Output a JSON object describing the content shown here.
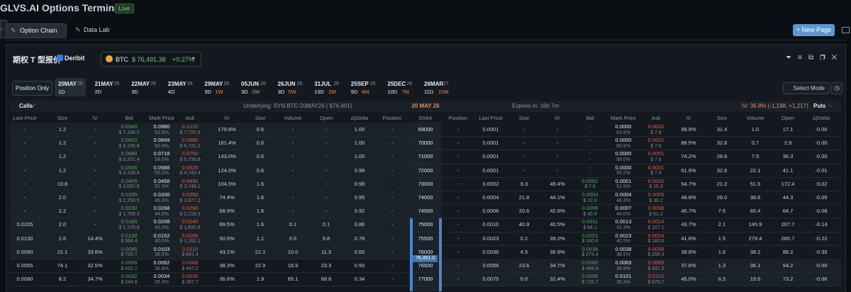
{
  "header": {
    "title": "GLVS.AI Options Terminal",
    "badge": "Live"
  },
  "tabs": [
    "Option Chain",
    "Data Lab"
  ],
  "new_page": "+ New Page",
  "toolbar": {
    "title": "期权 T 型报价",
    "exchange": "Deribit",
    "asset": "BTC",
    "price": "$ 76,491.38",
    "change": "+0.27%"
  },
  "position_only": "Position Only",
  "expiries": [
    {
      "date": "20MAY",
      "year": "26",
      "days": "1D"
    },
    {
      "date": "21MAY",
      "year": "26",
      "days": "2D"
    },
    {
      "date": "22MAY",
      "year": "26",
      "days": "3D"
    },
    {
      "date": "23MAY",
      "year": "26",
      "days": "4D"
    },
    {
      "date": "29MAY",
      "year": "26",
      "days": "3D",
      "span": "1W"
    },
    {
      "date": "05JUN",
      "year": "26",
      "days": "3D",
      "span": "2W"
    },
    {
      "date": "26JUN",
      "year": "26",
      "days": "3D",
      "span": "5W"
    },
    {
      "date": "31JUL",
      "year": "26",
      "days": "13D",
      "span": "2M"
    },
    {
      "date": "25SEP",
      "year": "26",
      "days": "9D",
      "span": "4M"
    },
    {
      "date": "25DEC",
      "year": "26",
      "days": "10D",
      "span": "7M"
    },
    {
      "date": "26MAR",
      "year": "27",
      "days": "11D",
      "span": "10M"
    }
  ],
  "select_mode": "Select Mode",
  "info": {
    "calls": "Calls",
    "underlying": "Underlying: SYN.BTC-20MAY26 ( $76,491)",
    "expiry": "20 MAY 26",
    "expires_in": "Expires in: 16h 7m",
    "iv": "IV: 36.8% (-1,198, +1,217)",
    "puts": "Puts"
  },
  "columns": [
    "Last Price",
    "Size",
    "IV",
    "Bid",
    "Mark Price",
    "Ask",
    "IV",
    "Size",
    "Volume",
    "Open",
    "Δ|Delta",
    "Position",
    "Strike",
    "Position",
    "Last Price",
    "Size",
    "IV",
    "Bid",
    "Mark Price",
    "Ask",
    "IV",
    "Size",
    "Volume",
    "Open",
    "Δ|Delta"
  ],
  "underlying_marker": "76,491.0",
  "rows": [
    [
      "-",
      "1.2",
      "-",
      [
        "0.0940",
        "$ 7,190.2"
      ],
      [
        "0.0980",
        "63.8%"
      ],
      [
        "0.1010",
        "$ 7,725.6"
      ],
      "179.6%",
      "0.6",
      "-",
      "-",
      "1.00",
      "-",
      "69000",
      "-",
      "0.0001",
      "-",
      "-",
      [
        "-",
        "-"
      ],
      [
        "0.0000",
        "63.8%"
      ],
      [
        "0.0001",
        "$ 7.6"
      ],
      "98.9%",
      "31.4",
      "1.0",
      "17.1",
      "-0.00"
    ],
    [
      "-",
      "1.2",
      "-",
      [
        "0.0810",
        "$ 6,195.8"
      ],
      [
        "0.0849",
        "60.9%"
      ],
      [
        "0.0880",
        "$ 6,731.2"
      ],
      "161.4%",
      "0.6",
      "-",
      "-",
      "1.00",
      "-",
      "70000",
      "-",
      "0.0001",
      "-",
      "-",
      [
        "-",
        "-"
      ],
      [
        "0.0000",
        "60.9%"
      ],
      [
        "0.0001",
        "$ 7.6"
      ],
      "86.5%",
      "32.6",
      "0.7",
      "2.9",
      "-0.00"
    ],
    [
      "-",
      "1.2",
      "-",
      [
        "0.0680",
        "$ 5,201.4"
      ],
      [
        "0.0718",
        "58.0%"
      ],
      [
        "0.0750",
        "$ 5,736.8"
      ],
      "143.0%",
      "0.6",
      "-",
      "-",
      "1.00",
      "-",
      "71000",
      "-",
      "0.0001",
      "-",
      "-",
      [
        "-",
        "-"
      ],
      [
        "0.0000",
        "58.0%"
      ],
      [
        "0.0001",
        "$ 7.6"
      ],
      "74.2%",
      "28.8",
      "7.5",
      "36.3",
      "-0.00"
    ],
    [
      "-",
      "1.2",
      "-",
      [
        "0.0545",
        "$ 4,168.8"
      ],
      [
        "0.0588",
        "55.2%"
      ],
      [
        "0.0620",
        "$ 4,742.4"
      ],
      "124.0%",
      "0.6",
      "-",
      "-",
      "0.99",
      "-",
      "72000",
      "-",
      "0.0001",
      "-",
      "-",
      [
        "-",
        "-"
      ],
      [
        "0.0000",
        "55.2%"
      ],
      [
        "0.0001",
        "$ 7.6"
      ],
      "61.9%",
      "32.6",
      "22.1",
      "41.1",
      "-0.01"
    ],
    [
      "-",
      "10.8",
      "-",
      [
        "0.0405",
        "$ 3,097.9"
      ],
      [
        "0.0458",
        "51.5%"
      ],
      [
        "0.0490",
        "$ 3,748.1"
      ],
      "104.5%",
      "1.6",
      "-",
      "-",
      "0.98",
      "-",
      "73000",
      "-",
      "0.0002",
      "9.3",
      "49.4%",
      [
        "0.0001",
        "$ 7.6"
      ],
      [
        "0.0001",
        "51.5%"
      ],
      [
        "0.0002",
        "$ 15.3"
      ],
      "54.7%",
      "21.2",
      "51.5",
      "172.4",
      "-0.02"
    ],
    [
      "-",
      "2.0",
      "-",
      [
        "0.0295",
        "$ 2,256.5"
      ],
      [
        "0.0330",
        "46.3%"
      ],
      [
        "0.0350",
        "$ 2,677.2"
      ],
      "74.4%",
      "1.6",
      "-",
      "-",
      "0.95",
      "-",
      "74000",
      "-",
      "0.0004",
      "21.8",
      "44.1%",
      [
        "0.0003",
        "$ 22.9"
      ],
      [
        "0.0004",
        "46.3%"
      ],
      [
        "0.0005",
        "$ 38.2"
      ],
      "48.8%",
      "28.0",
      "38.6",
      "44.3",
      "-0.05"
    ],
    [
      "-",
      "2.2",
      "-",
      [
        "0.0230",
        "$ 1,759.3"
      ],
      [
        "0.0268",
        "44.0%"
      ],
      [
        "0.0290",
        "$ 2,218.3"
      ],
      "68.9%",
      "1.6",
      "-",
      "-",
      "0.92",
      "-",
      "74500",
      "-",
      "0.0006",
      "20.6",
      "42.6%",
      [
        "0.0006",
        "$ 45.9"
      ],
      [
        "0.0007",
        "44.0%"
      ],
      [
        "0.0008",
        "$ 61.2"
      ],
      "45.7%",
      "7.6",
      "65.4",
      "64.7",
      "-0.08"
    ],
    [
      "0.0205",
      "2.0",
      "-",
      [
        "0.0180",
        "$ 1,376.8"
      ],
      [
        "0.0208",
        "42.3%"
      ],
      [
        "0.0240",
        "$ 1,835.8"
      ],
      "69.5%",
      "1.6",
      "0.1",
      "0.1",
      "0.86",
      "-",
      "75000",
      "-",
      "0.0010",
      "40.9",
      "40.5%",
      [
        "0.0011",
        "$ 84.1"
      ],
      [
        "0.0013",
        "42.3%"
      ],
      [
        "0.0014",
        "$ 107.1"
      ],
      "43.7%",
      "2.1",
      "145.9",
      "207.7",
      "-0.14"
    ],
    [
      "0.0130",
      "2.6",
      "14.4%",
      [
        "0.0130",
        "$ 994.4"
      ],
      [
        "0.0152",
        "40.5%"
      ],
      [
        "0.0165",
        "$ 1,262.1"
      ],
      "50.0%",
      "1.1",
      "0.6",
      "9.8",
      "0.78",
      "-",
      "75500",
      "-",
      "0.0023",
      "0.2",
      "39.2%",
      [
        "0.0021",
        "$ 160.6"
      ],
      [
        "0.0023",
        "40.5%"
      ],
      [
        "0.0024",
        "$ 183.6"
      ],
      "41.6%",
      "1.5",
      "279.4",
      "285.7",
      "-0.22"
    ],
    [
      "0.0090",
      "21.1",
      "33.6%",
      [
        "0.0095",
        "$ 726.7"
      ],
      [
        "0.0103",
        "38.5%"
      ],
      [
        "0.0110",
        "$ 841.4"
      ],
      "43.1%",
      "21.1",
      "10.0",
      "11.3",
      "0.65",
      "-",
      "76000",
      "-",
      "0.0036",
      "4.5",
      "36.9%",
      [
        "0.0036",
        "$ 275.4"
      ],
      [
        "0.0038",
        "38.5%"
      ],
      [
        "0.0039",
        "$ 298.3"
      ],
      "38.8%",
      "1.6",
      "38.2",
      "88.2",
      "-0.35"
    ],
    [
      "0.0055",
      "74.1",
      "32.5%",
      [
        "0.0055",
        "$ 420.7"
      ],
      [
        "0.0062",
        "36.8%"
      ],
      [
        "0.0065",
        "$ 497.2"
      ],
      "38.3%",
      "22.9",
      "16.9",
      "23.3",
      "0.50",
      "-",
      "76500",
      "-",
      "0.0056",
      "23.6",
      "34.7%",
      [
        "0.0060",
        "$ 458.9"
      ],
      [
        "0.0063",
        "36.8%"
      ],
      [
        "0.0065",
        "$ 497.2"
      ],
      "37.6%",
      "1.3",
      "36.1",
      "54.2",
      "-0.50"
    ],
    [
      "0.0060",
      "8.2",
      "34.7%",
      [
        "0.0032",
        "$ 244.8"
      ],
      [
        "0.0034",
        "35.3%"
      ],
      [
        "0.0035",
        "$ 267.7"
      ],
      "36.6%",
      "1.9",
      "65.1",
      "68.6",
      "0.34",
      "-",
      "77000",
      "-",
      "0.0075",
      "5.0",
      "32.4%",
      [
        "0.0095",
        "$ 726.7"
      ],
      [
        "0.0101",
        "35.3%"
      ],
      [
        "0.0115",
        "$ 879.7"
      ],
      "45.0%",
      "6.5",
      "19.6",
      "73.2",
      "-0.66"
    ]
  ]
}
